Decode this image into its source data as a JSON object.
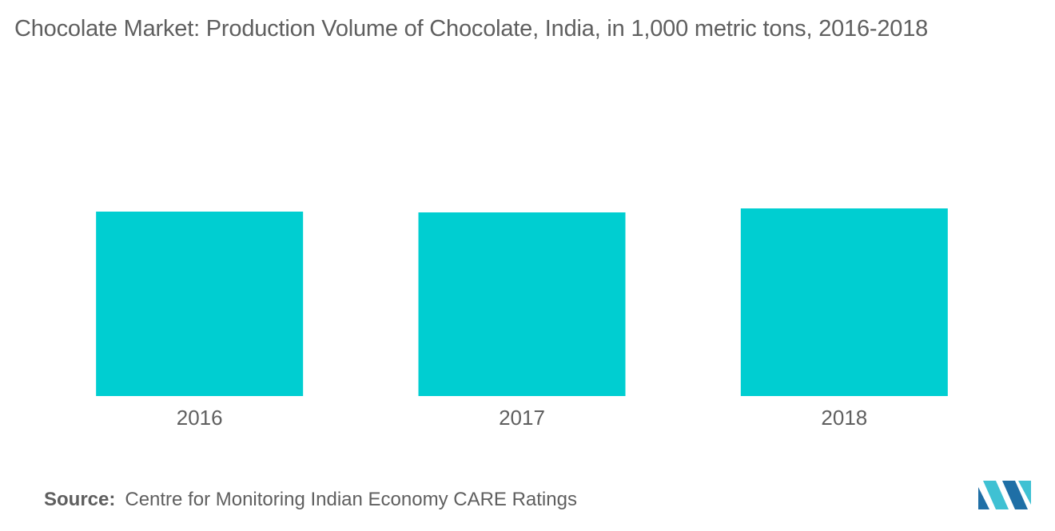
{
  "chart_data": {
    "type": "bar",
    "title": "Chocolate Market: Production Volume of Chocolate, India, in 1,000 metric tons, 2016-2018",
    "categories": [
      "2016",
      "2017",
      "2018"
    ],
    "values": [
      231,
      230,
      235
    ],
    "xlabel": "",
    "ylabel": "",
    "ylim": [
      0,
      330
    ],
    "grid": false,
    "legend": "none"
  },
  "source": {
    "label": "Source:",
    "text": "Centre for Monitoring Indian Economy CARE Ratings"
  },
  "colors": {
    "bar": "#00CED1",
    "text": "#5f5f5f",
    "logo_dark": "#1f6fa6",
    "logo_light": "#3fc1d3"
  },
  "logo": {
    "icon": "mordor-intelligence-logo-icon"
  }
}
